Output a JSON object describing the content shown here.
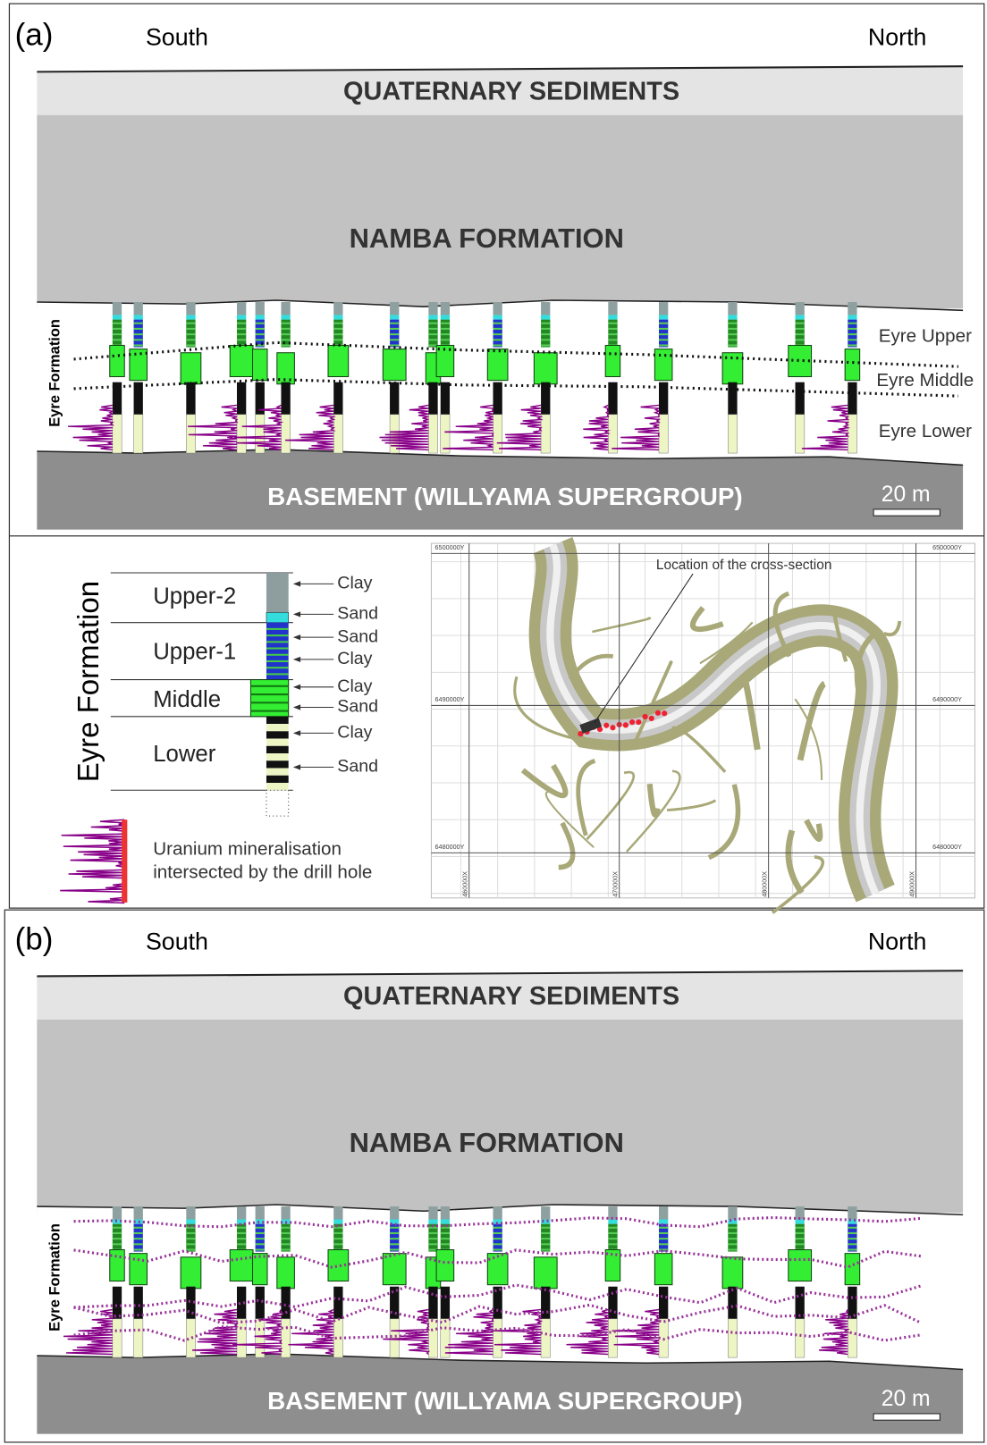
{
  "panel_a": {
    "label": "(a)",
    "south": "South",
    "north": "North",
    "quaternary": "QUATERNARY SEDIMENTS",
    "namba": "NAMBA FORMATION",
    "eyre": "Eyre Formation",
    "units": [
      "Eyre Upper",
      "Eyre Middle",
      "Eyre Lower"
    ],
    "basement": "BASEMENT (WILLYAMA SUPERGROUP)",
    "scale": "20 m"
  },
  "legend": {
    "title": "Eyre Formation",
    "units": [
      "Upper-2",
      "Upper-1",
      "Middle",
      "Lower"
    ],
    "lithology": [
      "Clay",
      "Sand",
      "Sand",
      "Clay",
      "Clay",
      "Sand",
      "Clay",
      "Sand"
    ],
    "uranium": [
      "Uranium mineralisation",
      "intersected by the drill hole"
    ]
  },
  "map": {
    "label": "Location of the cross-section",
    "northings": [
      "6500000Y",
      "6490000Y",
      "6480000Y"
    ],
    "eastings": [
      "460000X",
      "470000X",
      "480000X",
      "490000X"
    ]
  },
  "panel_b": {
    "label": "(b)",
    "south": "South",
    "north": "North",
    "quaternary": "QUATERNARY SEDIMENTS",
    "namba": "NAMBA FORMATION",
    "eyre": "Eyre Formation",
    "basement": "BASEMENT (WILLYAMA SUPERGROUP)",
    "scale": "20 m"
  }
}
